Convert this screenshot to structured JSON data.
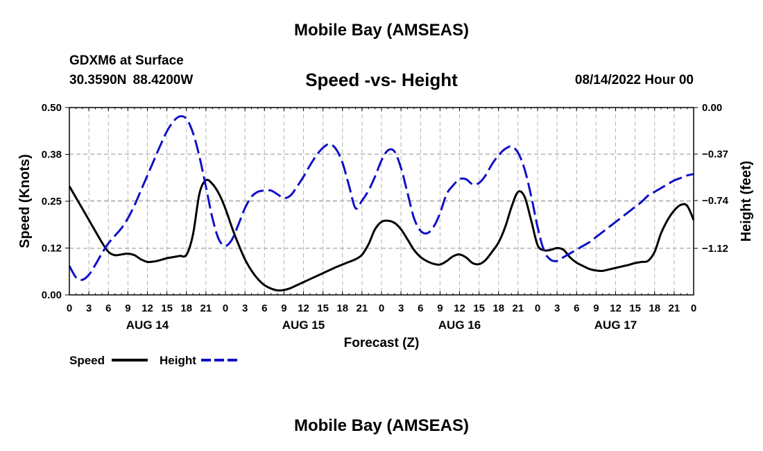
{
  "header": {
    "title": "Mobile Bay (AMSEAS)",
    "station": "GDXM6 at Surface",
    "coords": "30.3590N  88.4200W",
    "chart_title": "Speed -vs- Height",
    "run_time": "08/14/2022 Hour 00"
  },
  "footer": {
    "title": "Mobile Bay (AMSEAS)"
  },
  "colors": {
    "speed": "#000000",
    "height": "#1010c8",
    "grid": "#b4b4b4"
  },
  "chart_data": {
    "type": "line",
    "title": "Speed -vs- Height",
    "xlabel": "Forecast (Z)",
    "ylabel": "Speed (Knots)",
    "y2label": "Height (feet)",
    "xlim": [
      0,
      96
    ],
    "ylim": [
      0,
      0.5
    ],
    "y2lim": [
      -1.49,
      0
    ],
    "x_ticks": [
      0,
      3,
      6,
      9,
      12,
      15,
      18,
      21,
      24,
      27,
      30,
      33,
      36,
      39,
      42,
      45,
      48,
      51,
      54,
      57,
      60,
      63,
      66,
      69,
      72,
      75,
      78,
      81,
      84,
      87,
      90,
      93,
      96
    ],
    "x_tick_labels": [
      "0",
      "3",
      "6",
      "9",
      "12",
      "15",
      "18",
      "21",
      "0",
      "3",
      "6",
      "9",
      "12",
      "15",
      "18",
      "21",
      "0",
      "3",
      "6",
      "9",
      "12",
      "15",
      "18",
      "21",
      "0",
      "3",
      "6",
      "9",
      "12",
      "15",
      "18",
      "21",
      "0"
    ],
    "date_labels": [
      {
        "x": 12,
        "label": "AUG 14"
      },
      {
        "x": 36,
        "label": "AUG 15"
      },
      {
        "x": 60,
        "label": "AUG 16"
      },
      {
        "x": 84,
        "label": "AUG 17"
      }
    ],
    "y_ticks": [
      0,
      0.125,
      0.25,
      0.375,
      0.5
    ],
    "y_tick_labels": [
      "0.00",
      "0.12",
      "0.25",
      "0.38",
      "0.50"
    ],
    "y2_ticks": [
      0,
      -0.37,
      -0.74,
      -1.12
    ],
    "y2_tick_labels": [
      "0.00",
      "−0.37",
      "−0.74",
      "−1.12"
    ],
    "grid": true,
    "legend": {
      "placement": "bottom-left",
      "entries": [
        "Speed",
        "Height"
      ]
    },
    "series": [
      {
        "name": "Speed",
        "axis": "left",
        "style": "solid",
        "x": [
          0,
          2,
          4,
          5,
          6,
          7,
          8,
          9,
          10,
          11,
          12,
          13,
          14,
          15,
          16,
          17,
          18,
          19,
          20,
          21,
          22,
          23,
          24,
          25,
          26,
          27,
          28,
          29,
          30,
          31,
          32,
          33,
          34,
          35,
          36,
          37,
          38,
          39,
          40,
          41,
          42,
          43,
          44,
          45,
          46,
          47,
          48,
          49,
          50,
          51,
          52,
          53,
          54,
          55,
          56,
          57,
          58,
          59,
          60,
          61,
          62,
          63,
          64,
          65,
          66,
          67,
          68,
          69,
          70,
          71,
          72,
          73,
          74,
          75,
          76,
          77,
          78,
          79,
          80,
          81,
          82,
          83,
          84,
          85,
          86,
          87,
          88,
          89,
          90,
          91,
          92,
          93,
          94,
          95,
          96
        ],
        "values": [
          0.29,
          0.23,
          0.17,
          0.14,
          0.115,
          0.106,
          0.108,
          0.11,
          0.106,
          0.095,
          0.088,
          0.089,
          0.093,
          0.098,
          0.101,
          0.104,
          0.107,
          0.16,
          0.27,
          0.306,
          0.296,
          0.27,
          0.23,
          0.18,
          0.135,
          0.095,
          0.065,
          0.042,
          0.026,
          0.017,
          0.012,
          0.013,
          0.018,
          0.026,
          0.034,
          0.042,
          0.05,
          0.058,
          0.066,
          0.074,
          0.081,
          0.088,
          0.095,
          0.107,
          0.135,
          0.175,
          0.195,
          0.198,
          0.192,
          0.175,
          0.148,
          0.12,
          0.101,
          0.09,
          0.083,
          0.081,
          0.09,
          0.103,
          0.108,
          0.1,
          0.085,
          0.082,
          0.093,
          0.115,
          0.14,
          0.18,
          0.235,
          0.275,
          0.262,
          0.2,
          0.133,
          0.119,
          0.12,
          0.125,
          0.12,
          0.1,
          0.086,
          0.077,
          0.069,
          0.065,
          0.064,
          0.068,
          0.072,
          0.076,
          0.08,
          0.085,
          0.088,
          0.091,
          0.115,
          0.165,
          0.2,
          0.225,
          0.24,
          0.238,
          0.2
        ]
      },
      {
        "name": "Height",
        "axis": "right",
        "style": "dashed",
        "x": [
          0,
          1,
          2,
          3,
          4,
          5,
          6,
          7,
          8,
          9,
          10,
          11,
          12,
          13,
          14,
          15,
          16,
          17,
          18,
          19,
          20,
          21,
          22,
          23,
          24,
          25,
          26,
          27,
          28,
          29,
          30,
          31,
          32,
          33,
          34,
          35,
          36,
          37,
          38,
          39,
          40,
          41,
          42,
          43,
          44,
          45,
          46,
          47,
          48,
          49,
          50,
          51,
          52,
          53,
          54,
          55,
          56,
          57,
          58,
          59,
          60,
          61,
          62,
          63,
          64,
          65,
          66,
          67,
          68,
          69,
          70,
          71,
          72,
          73,
          74,
          75,
          76,
          77,
          78,
          79,
          80,
          81,
          82,
          83,
          84,
          85,
          86,
          87,
          88,
          89,
          90,
          91,
          92,
          93,
          94,
          95,
          96
        ],
        "values": [
          -1.26,
          -1.35,
          -1.37,
          -1.33,
          -1.25,
          -1.16,
          -1.08,
          -1.02,
          -0.96,
          -0.88,
          -0.78,
          -0.66,
          -0.54,
          -0.42,
          -0.3,
          -0.19,
          -0.11,
          -0.07,
          -0.09,
          -0.2,
          -0.39,
          -0.63,
          -0.88,
          -1.05,
          -1.1,
          -1.05,
          -0.93,
          -0.8,
          -0.71,
          -0.67,
          -0.66,
          -0.66,
          -0.69,
          -0.72,
          -0.7,
          -0.63,
          -0.55,
          -0.46,
          -0.38,
          -0.32,
          -0.29,
          -0.33,
          -0.44,
          -0.62,
          -0.8,
          -0.74,
          -0.66,
          -0.55,
          -0.42,
          -0.34,
          -0.35,
          -0.48,
          -0.68,
          -0.88,
          -0.98,
          -1.0,
          -0.95,
          -0.84,
          -0.69,
          -0.62,
          -0.57,
          -0.57,
          -0.61,
          -0.6,
          -0.54,
          -0.45,
          -0.38,
          -0.33,
          -0.31,
          -0.36,
          -0.49,
          -0.7,
          -0.95,
          -1.14,
          -1.21,
          -1.22,
          -1.19,
          -1.16,
          -1.13,
          -1.1,
          -1.07,
          -1.03,
          -0.99,
          -0.95,
          -0.91,
          -0.87,
          -0.83,
          -0.79,
          -0.75,
          -0.7,
          -0.67,
          -0.64,
          -0.61,
          -0.58,
          -0.56,
          -0.54,
          -0.53
        ]
      }
    ]
  }
}
